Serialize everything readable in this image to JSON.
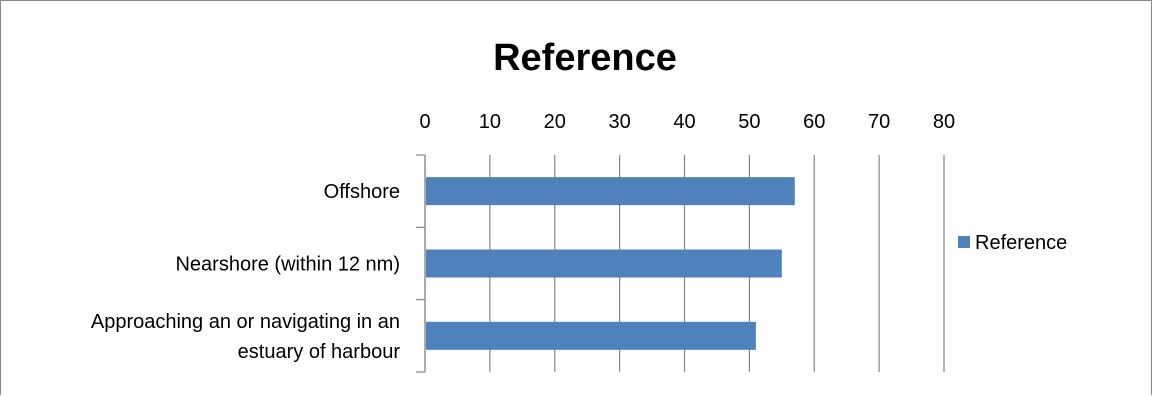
{
  "chart_data": {
    "type": "bar",
    "orientation": "horizontal",
    "title": "Reference",
    "categories": [
      "Offshore",
      "Nearshore (within 12 nm)",
      "Approaching an or navigating in an estuary of harbour"
    ],
    "category_lines": [
      [
        "Offshore"
      ],
      [
        "Nearshore (within 12 nm)"
      ],
      [
        "Approaching an or navigating in an",
        "estuary of harbour"
      ]
    ],
    "series": [
      {
        "name": "Reference",
        "values": [
          57,
          55,
          51
        ]
      }
    ],
    "xlim": [
      0,
      80
    ],
    "xticks": [
      "0",
      "10",
      "20",
      "30",
      "40",
      "50",
      "60",
      "70",
      "80"
    ],
    "x_axis_position": "top",
    "grid": "vertical",
    "legend": "right",
    "bar_color": "#4F81BD",
    "grid_color": "#868686"
  }
}
